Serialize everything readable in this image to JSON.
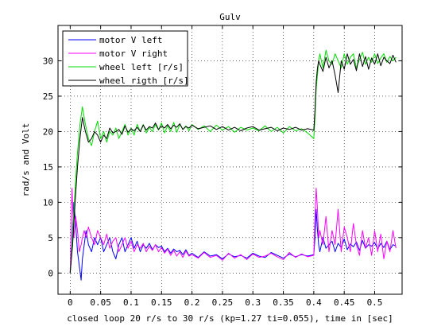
{
  "chart_data": {
    "type": "line",
    "title": "Gulv",
    "xlabel": "closed loop 20 r/s to 30 r/s (kp=1.27 ti=0.055), time in [sec]",
    "ylabel": "rad/s and Volt",
    "xlim": [
      -0.02,
      0.545
    ],
    "ylim": [
      -3,
      35
    ],
    "x_ticks": [
      0,
      0.05,
      0.1,
      0.15,
      0.2,
      0.25,
      0.3,
      0.35,
      0.4,
      0.45,
      0.5
    ],
    "x_tick_labels": [
      "0",
      "0.05",
      "0.1",
      "0.15",
      "0.2",
      "0.25",
      "0.3",
      "0.35",
      "0.4",
      "0.45",
      "0.5"
    ],
    "y_ticks": [
      0,
      5,
      10,
      15,
      20,
      25,
      30
    ],
    "y_tick_labels": [
      "0",
      "5",
      "10",
      "15",
      "20",
      "25",
      "30"
    ],
    "grid": true,
    "legend_position": "top-left",
    "series": [
      {
        "name": "motor V left",
        "color": "#0000ff",
        "x": [
          0.0,
          0.003,
          0.006,
          0.009,
          0.012,
          0.015,
          0.018,
          0.02,
          0.023,
          0.026,
          0.03,
          0.035,
          0.04,
          0.045,
          0.05,
          0.055,
          0.06,
          0.065,
          0.07,
          0.075,
          0.08,
          0.085,
          0.09,
          0.095,
          0.1,
          0.105,
          0.11,
          0.115,
          0.12,
          0.125,
          0.13,
          0.135,
          0.14,
          0.145,
          0.15,
          0.155,
          0.16,
          0.165,
          0.17,
          0.175,
          0.18,
          0.185,
          0.19,
          0.195,
          0.2,
          0.21,
          0.22,
          0.23,
          0.24,
          0.25,
          0.26,
          0.27,
          0.28,
          0.29,
          0.3,
          0.31,
          0.32,
          0.33,
          0.34,
          0.35,
          0.36,
          0.37,
          0.38,
          0.39,
          0.4,
          0.402,
          0.404,
          0.406,
          0.408,
          0.41,
          0.415,
          0.42,
          0.425,
          0.43,
          0.435,
          0.44,
          0.445,
          0.45,
          0.455,
          0.46,
          0.465,
          0.47,
          0.475,
          0.48,
          0.485,
          0.49,
          0.495,
          0.5,
          0.505,
          0.51,
          0.515,
          0.52,
          0.525,
          0.53,
          0.535
        ],
        "y": [
          0,
          4,
          10,
          7,
          3,
          1,
          -1,
          2,
          4,
          6,
          4,
          3,
          5,
          4,
          5,
          3,
          4,
          5,
          3,
          2,
          4,
          5,
          3,
          4,
          5,
          3.5,
          4.5,
          3,
          4,
          3.5,
          4.2,
          3.3,
          4,
          3.6,
          3.8,
          3,
          3.5,
          2.8,
          3.4,
          3,
          3.2,
          2.6,
          3.3,
          2.5,
          2.8,
          2.2,
          3,
          2.4,
          2.6,
          2,
          2.7,
          2.3,
          2.5,
          2.1,
          2.8,
          2.4,
          2.2,
          2.9,
          2.5,
          2.1,
          2.7,
          2.3,
          2.6,
          2.4,
          2.6,
          5,
          9,
          6,
          4,
          3,
          5,
          3.5,
          4,
          4.5,
          3,
          4.2,
          3.6,
          4.8,
          3.3,
          4.1,
          3.7,
          4.4,
          3.2,
          4.6,
          3.5,
          4,
          3.8,
          4.3,
          3.4,
          4.2,
          3.6,
          4.5,
          3.3,
          4,
          3.8
        ]
      },
      {
        "name": "motor V right",
        "color": "#ff00ff",
        "x": [
          0.0,
          0.003,
          0.006,
          0.009,
          0.012,
          0.015,
          0.018,
          0.02,
          0.023,
          0.026,
          0.03,
          0.035,
          0.04,
          0.045,
          0.05,
          0.055,
          0.06,
          0.065,
          0.07,
          0.075,
          0.08,
          0.085,
          0.09,
          0.095,
          0.1,
          0.105,
          0.11,
          0.115,
          0.12,
          0.125,
          0.13,
          0.135,
          0.14,
          0.145,
          0.15,
          0.155,
          0.16,
          0.165,
          0.17,
          0.175,
          0.18,
          0.185,
          0.19,
          0.195,
          0.2,
          0.21,
          0.22,
          0.23,
          0.24,
          0.25,
          0.26,
          0.27,
          0.28,
          0.29,
          0.3,
          0.31,
          0.32,
          0.33,
          0.34,
          0.35,
          0.36,
          0.37,
          0.38,
          0.39,
          0.4,
          0.402,
          0.404,
          0.406,
          0.408,
          0.41,
          0.415,
          0.42,
          0.425,
          0.43,
          0.435,
          0.44,
          0.445,
          0.45,
          0.455,
          0.46,
          0.465,
          0.47,
          0.475,
          0.48,
          0.485,
          0.49,
          0.495,
          0.5,
          0.505,
          0.51,
          0.515,
          0.52,
          0.525,
          0.53,
          0.535
        ],
        "y": [
          0,
          12,
          5,
          8,
          6,
          3,
          4,
          5,
          6,
          5,
          6.5,
          5,
          4,
          6,
          5,
          4,
          5.5,
          3.5,
          4.5,
          5,
          3,
          4,
          5,
          3.5,
          4.5,
          3,
          4,
          3.5,
          4.2,
          3,
          3.8,
          3.2,
          4,
          3,
          3.6,
          2.8,
          3.4,
          2.5,
          3.2,
          2.4,
          3,
          2.2,
          3.1,
          2.4,
          2.6,
          2.1,
          2.9,
          2.2,
          2.5,
          1.8,
          2.8,
          2.1,
          2.6,
          1.9,
          2.7,
          2.2,
          2.4,
          2.8,
          2.3,
          1.9,
          2.9,
          2.2,
          2.7,
          2.3,
          2.5,
          8,
          12,
          9,
          5,
          6,
          4,
          8,
          3,
          6,
          4,
          9,
          3,
          6.5,
          5,
          3,
          7,
          4,
          2.5,
          6,
          3.5,
          5,
          2.5,
          6,
          3,
          5.5,
          2,
          4.5,
          3,
          6,
          3.5
        ]
      },
      {
        "name": "wheel left [r/s]",
        "color": "#00dd00",
        "x": [
          0.0,
          0.004,
          0.008,
          0.012,
          0.016,
          0.02,
          0.025,
          0.03,
          0.035,
          0.04,
          0.045,
          0.05,
          0.055,
          0.06,
          0.065,
          0.07,
          0.075,
          0.08,
          0.085,
          0.09,
          0.095,
          0.1,
          0.105,
          0.11,
          0.115,
          0.12,
          0.125,
          0.13,
          0.135,
          0.14,
          0.145,
          0.15,
          0.155,
          0.16,
          0.165,
          0.17,
          0.175,
          0.18,
          0.185,
          0.19,
          0.195,
          0.2,
          0.21,
          0.22,
          0.23,
          0.24,
          0.25,
          0.26,
          0.27,
          0.28,
          0.29,
          0.3,
          0.31,
          0.32,
          0.33,
          0.34,
          0.35,
          0.36,
          0.37,
          0.38,
          0.39,
          0.4,
          0.402,
          0.404,
          0.406,
          0.408,
          0.41,
          0.415,
          0.42,
          0.425,
          0.43,
          0.435,
          0.44,
          0.445,
          0.45,
          0.455,
          0.46,
          0.465,
          0.47,
          0.475,
          0.48,
          0.485,
          0.49,
          0.495,
          0.5,
          0.505,
          0.51,
          0.515,
          0.52,
          0.525,
          0.53,
          0.535
        ],
        "y": [
          0,
          5,
          12,
          17,
          21,
          23.5,
          21,
          19,
          18,
          20,
          21.5,
          19,
          20,
          18.5,
          20,
          19.5,
          20.5,
          19,
          20,
          21,
          19.5,
          20.5,
          19.5,
          21,
          20,
          21,
          19.8,
          20.6,
          20,
          21,
          20.2,
          21.2,
          19.8,
          20.8,
          20,
          21.3,
          19.9,
          21,
          20.3,
          20.8,
          20.1,
          21,
          20.3,
          20.8,
          20,
          20.9,
          20.2,
          20.7,
          19.9,
          20.6,
          20.2,
          20.5,
          20.1,
          20.8,
          20,
          20.6,
          19.8,
          20.7,
          20.1,
          20.4,
          19.8,
          19,
          22,
          26,
          28,
          30,
          31,
          29,
          31.5,
          30,
          29.5,
          31,
          30,
          29,
          31,
          29.5,
          30.5,
          31,
          29,
          30.2,
          31.2,
          29.5,
          30.5,
          29.8,
          31,
          29.6,
          30.4,
          31,
          29.8,
          30.6,
          30,
          30.5
        ]
      },
      {
        "name": "wheel rigth [r/s]",
        "color": "#000000",
        "x": [
          0.0,
          0.004,
          0.008,
          0.012,
          0.016,
          0.02,
          0.025,
          0.03,
          0.035,
          0.04,
          0.045,
          0.05,
          0.055,
          0.06,
          0.065,
          0.07,
          0.075,
          0.08,
          0.085,
          0.09,
          0.095,
          0.1,
          0.105,
          0.11,
          0.115,
          0.12,
          0.125,
          0.13,
          0.135,
          0.14,
          0.145,
          0.15,
          0.155,
          0.16,
          0.165,
          0.17,
          0.175,
          0.18,
          0.185,
          0.19,
          0.195,
          0.2,
          0.21,
          0.22,
          0.23,
          0.24,
          0.25,
          0.26,
          0.27,
          0.28,
          0.29,
          0.3,
          0.31,
          0.32,
          0.33,
          0.34,
          0.35,
          0.36,
          0.37,
          0.38,
          0.39,
          0.4,
          0.402,
          0.404,
          0.406,
          0.408,
          0.41,
          0.415,
          0.42,
          0.425,
          0.43,
          0.435,
          0.44,
          0.445,
          0.45,
          0.455,
          0.46,
          0.465,
          0.47,
          0.475,
          0.48,
          0.485,
          0.49,
          0.495,
          0.5,
          0.505,
          0.51,
          0.515,
          0.52,
          0.525,
          0.53,
          0.535
        ],
        "y": [
          0,
          4,
          10,
          15,
          19,
          22,
          20,
          18.5,
          19,
          20,
          19.5,
          18.5,
          19.5,
          19,
          20.5,
          19.8,
          20,
          20.3,
          19.6,
          20.8,
          19.9,
          20.4,
          20.1,
          20.6,
          20,
          20.9,
          20.2,
          20.7,
          20.5,
          21.2,
          20.3,
          20.8,
          20.5,
          21,
          20.4,
          20.9,
          20.6,
          21.1,
          20.3,
          20.7,
          20.5,
          20.9,
          20.4,
          20.6,
          20.8,
          20.3,
          20.7,
          20.2,
          20.6,
          20.1,
          20.5,
          20.7,
          20.2,
          20.4,
          20.6,
          20.1,
          20.5,
          20.3,
          20.6,
          20.2,
          20.4,
          20.2,
          23,
          27,
          29,
          30,
          29.5,
          28.5,
          30.5,
          29,
          30,
          28,
          25.5,
          30,
          28.8,
          31,
          29.5,
          30.2,
          28.6,
          31,
          29.2,
          30.6,
          28.8,
          30.4,
          29.5,
          31,
          29.3,
          30.5,
          30,
          29.6,
          30.8,
          29.8
        ]
      }
    ]
  }
}
